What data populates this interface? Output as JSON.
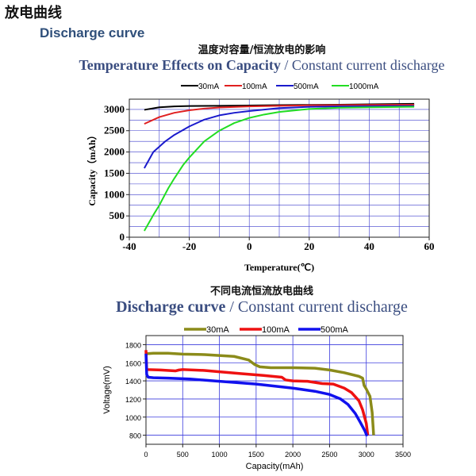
{
  "page_title": "放电曲线",
  "section_title": "Discharge curve",
  "chart_data": [
    {
      "type": "line",
      "title_zh": "温度对容量/恒流放电的影响",
      "title_bold": "Temperature Effects on Capacity",
      "title_rest": " / Constant current discharge",
      "xlabel": "Temperature(℃)",
      "ylabel": "Capacity（mAh）",
      "xlim": [
        -40,
        60
      ],
      "ylim": [
        0,
        3240
      ],
      "xticks": [
        -40,
        -20,
        0,
        20,
        40,
        60
      ],
      "yticks": [
        0,
        500,
        1000,
        1500,
        2000,
        2500,
        3000
      ],
      "grid": true,
      "legend": "top",
      "series": [
        {
          "name": "30mA",
          "color": "#000000",
          "x": [
            -35,
            -30,
            -25,
            -20,
            -10,
            0,
            10,
            20,
            30,
            40,
            55
          ],
          "y": [
            2990,
            3050,
            3070,
            3080,
            3085,
            3090,
            3100,
            3105,
            3110,
            3120,
            3130
          ]
        },
        {
          "name": "100mA",
          "color": "#e02020",
          "x": [
            -35,
            -30,
            -25,
            -20,
            -15,
            -10,
            0,
            10,
            20,
            30,
            40,
            55
          ],
          "y": [
            2660,
            2820,
            2920,
            2980,
            3020,
            3045,
            3070,
            3085,
            3095,
            3100,
            3105,
            3110
          ]
        },
        {
          "name": "500mA",
          "color": "#1a1acc",
          "x": [
            -35,
            -32,
            -28,
            -25,
            -20,
            -15,
            -10,
            -5,
            0,
            10,
            20,
            30,
            40,
            55
          ],
          "y": [
            1620,
            2000,
            2250,
            2400,
            2600,
            2760,
            2860,
            2920,
            2960,
            3030,
            3060,
            3070,
            3075,
            3080
          ]
        },
        {
          "name": "1000mA",
          "color": "#22dd22",
          "x": [
            -35,
            -32,
            -30,
            -27,
            -25,
            -22,
            -20,
            -15,
            -10,
            -5,
            0,
            5,
            10,
            20,
            30,
            40,
            55
          ],
          "y": [
            150,
            520,
            750,
            1150,
            1380,
            1700,
            1870,
            2250,
            2500,
            2680,
            2800,
            2880,
            2940,
            3010,
            3040,
            3050,
            3060
          ]
        }
      ]
    },
    {
      "type": "line",
      "title_zh": "不同电流恒流放电曲线",
      "title_bold": "Discharge curve",
      "title_rest": " / Constant current discharge",
      "xlabel": "Capacity(mAh)",
      "ylabel": "Voltage(mV)",
      "xlim": [
        0,
        3500
      ],
      "ylim": [
        700,
        1900
      ],
      "xticks": [
        0,
        500,
        1000,
        1500,
        2000,
        2500,
        3000,
        3500
      ],
      "yticks": [
        800,
        1000,
        1200,
        1400,
        1600,
        1800
      ],
      "grid": true,
      "legend": "top",
      "series": [
        {
          "name": "30mA",
          "color": "#8b8b1a",
          "x": [
            0,
            10,
            100,
            300,
            500,
            800,
            1000,
            1200,
            1400,
            1480,
            1550,
            1700,
            2000,
            2300,
            2500,
            2700,
            2900,
            2950,
            2970,
            3000,
            3050,
            3080,
            3100
          ],
          "y": [
            1700,
            1700,
            1705,
            1705,
            1695,
            1690,
            1680,
            1670,
            1630,
            1580,
            1555,
            1545,
            1545,
            1540,
            1520,
            1490,
            1450,
            1430,
            1350,
            1310,
            1230,
            1050,
            800
          ]
        },
        {
          "name": "100mA",
          "color": "#ee1111",
          "x": [
            0,
            10,
            200,
            400,
            450,
            500,
            800,
            1000,
            1300,
            1600,
            1850,
            1900,
            2000,
            2200,
            2400,
            2550,
            2700,
            2800,
            2900,
            2950,
            3000,
            3020
          ],
          "y": [
            1740,
            1525,
            1520,
            1510,
            1520,
            1525,
            1515,
            1500,
            1480,
            1460,
            1440,
            1410,
            1400,
            1395,
            1370,
            1365,
            1320,
            1270,
            1180,
            1080,
            930,
            800
          ]
        },
        {
          "name": "500mA",
          "color": "#1111ee",
          "x": [
            0,
            10,
            30,
            100,
            300,
            600,
            1000,
            1500,
            2000,
            2300,
            2500,
            2650,
            2750,
            2850,
            2920,
            2980,
            3010
          ],
          "y": [
            1700,
            1470,
            1440,
            1435,
            1430,
            1420,
            1395,
            1365,
            1320,
            1285,
            1250,
            1200,
            1140,
            1040,
            940,
            850,
            790
          ]
        }
      ]
    }
  ]
}
